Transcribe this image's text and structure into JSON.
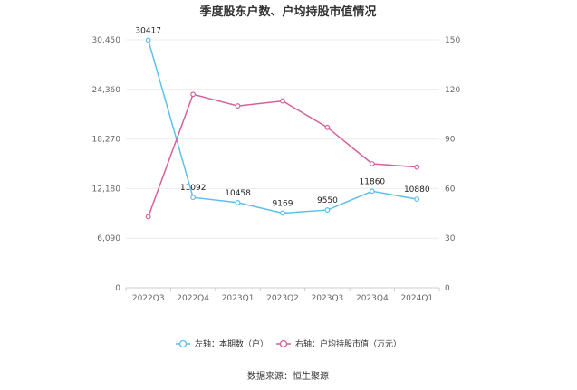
{
  "chart_data": {
    "type": "line",
    "title": "季度股东户数、户均持股市值情况",
    "categories": [
      "2022Q3",
      "2022Q4",
      "2023Q1",
      "2023Q2",
      "2023Q3",
      "2023Q4",
      "2024Q1"
    ],
    "left_axis": {
      "ticks": [
        "0",
        "6,090",
        "12,180",
        "18,270",
        "24,360",
        "30,450"
      ],
      "ylim": [
        0,
        30450
      ]
    },
    "right_axis": {
      "ticks": [
        "0",
        "30",
        "60",
        "90",
        "120",
        "150"
      ],
      "ylim": [
        0,
        150
      ]
    },
    "series": [
      {
        "name": "左轴：本期数（户）",
        "axis": "left",
        "color": "#5bc0eb",
        "values": [
          30417,
          11092,
          10458,
          9169,
          9550,
          11860,
          10880
        ],
        "labels": [
          "30417",
          "11092",
          "10458",
          "9169",
          "9550",
          "11860",
          "10880"
        ]
      },
      {
        "name": "右轴：户均持股市值（万元）",
        "axis": "right",
        "color": "#d4609e",
        "values": [
          43,
          117,
          110,
          113,
          97,
          75,
          73
        ]
      }
    ],
    "grid": true,
    "legend_position": "bottom",
    "source": "数据来源：恒生聚源"
  }
}
